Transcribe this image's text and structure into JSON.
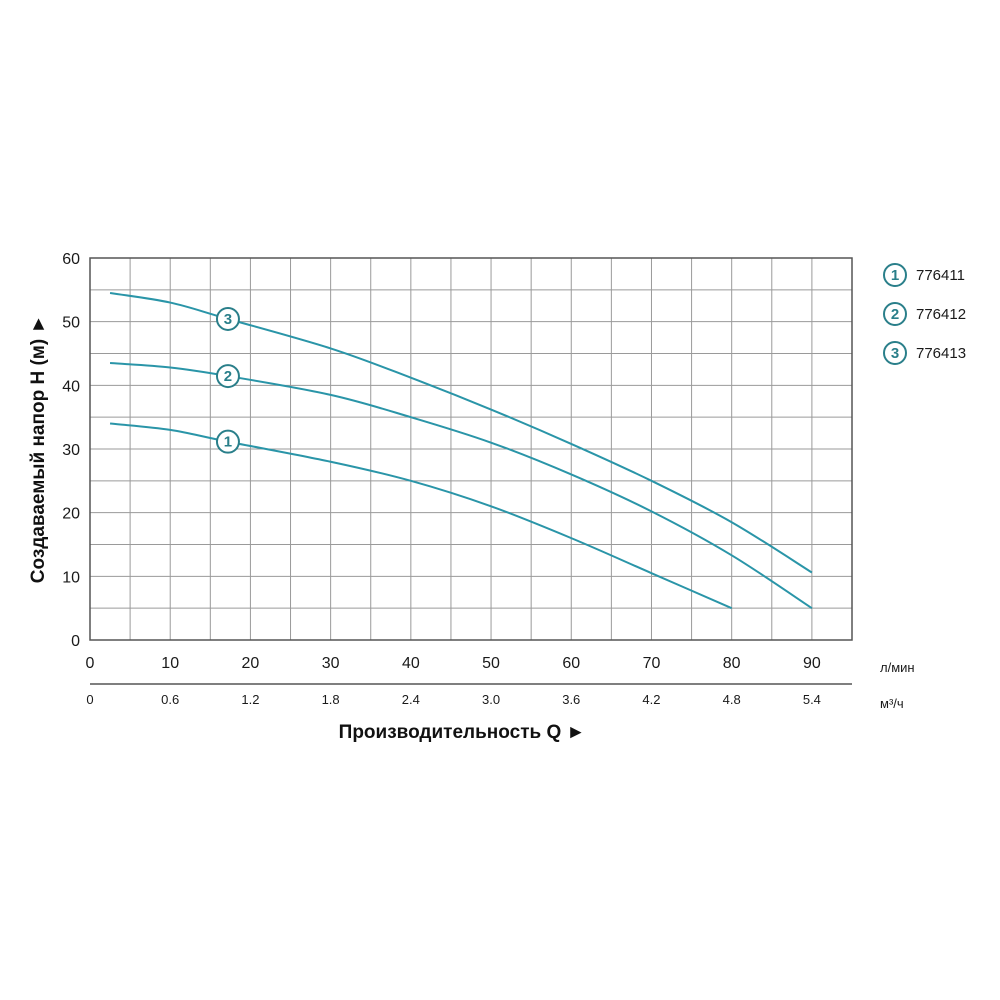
{
  "chart_data": {
    "type": "line",
    "title": "",
    "ylabel": "Создаваемый напор H (м) ►",
    "xlabel": "Производительность Q ►",
    "x_unit_primary": "л/мин",
    "x_unit_secondary": "м³/ч",
    "xlim": [
      0,
      95
    ],
    "ylim": [
      0,
      60
    ],
    "x_ticks": [
      "0",
      "10",
      "20",
      "30",
      "40",
      "50",
      "60",
      "70",
      "80",
      "90"
    ],
    "x_ticks_secondary": [
      "0",
      "0.6",
      "1.2",
      "1.8",
      "2.4",
      "3.0",
      "3.6",
      "4.2",
      "4.8",
      "5.4"
    ],
    "y_ticks": [
      "0",
      "10",
      "20",
      "30",
      "40",
      "50",
      "60"
    ],
    "grid": true,
    "legend_position": "right",
    "line_color": "#2a95a8",
    "marker_color": "#2a7f8a",
    "series": [
      {
        "marker": "1",
        "name": "776411",
        "points": [
          [
            2.5,
            34
          ],
          [
            10,
            33
          ],
          [
            17,
            31.2
          ],
          [
            30,
            28
          ],
          [
            40,
            25
          ],
          [
            50,
            21
          ],
          [
            60,
            16
          ],
          [
            70,
            10.5
          ],
          [
            80,
            5
          ]
        ],
        "marker_at": 17.2
      },
      {
        "marker": "2",
        "name": "776412",
        "points": [
          [
            2.5,
            43.5
          ],
          [
            10,
            42.8
          ],
          [
            17,
            41.5
          ],
          [
            30,
            38.5
          ],
          [
            40,
            35
          ],
          [
            50,
            31
          ],
          [
            60,
            26
          ],
          [
            70,
            20.2
          ],
          [
            80,
            13.3
          ],
          [
            90,
            5
          ]
        ],
        "marker_at": 17.2
      },
      {
        "marker": "3",
        "name": "776413",
        "points": [
          [
            2.5,
            54.5
          ],
          [
            10,
            53
          ],
          [
            17,
            50.5
          ],
          [
            30,
            45.8
          ],
          [
            40,
            41.2
          ],
          [
            50,
            36.2
          ],
          [
            60,
            30.8
          ],
          [
            70,
            25
          ],
          [
            80,
            18.5
          ],
          [
            90,
            10.6
          ]
        ],
        "marker_at": 17.2
      }
    ]
  }
}
